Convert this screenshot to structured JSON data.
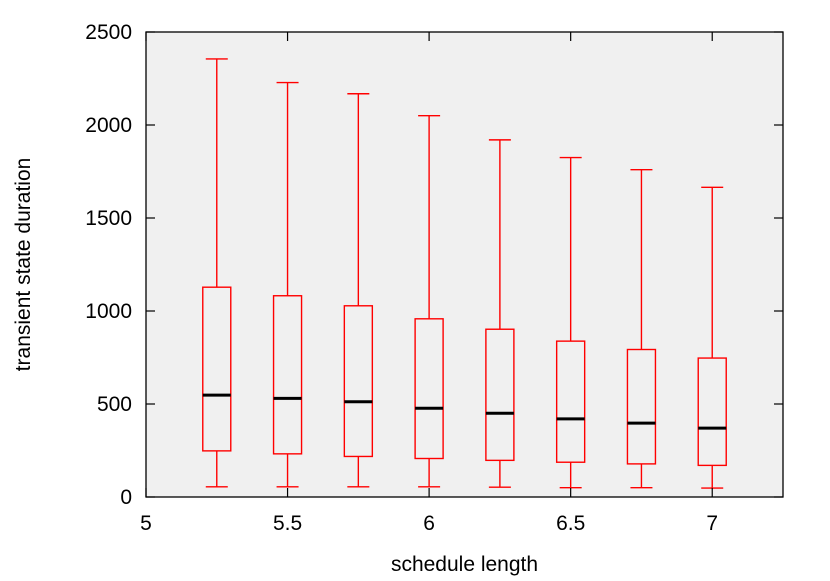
{
  "chart_data": {
    "type": "boxplot",
    "xlabel": "schedule length",
    "ylabel": "transient state duration",
    "xlim": [
      5,
      7.25
    ],
    "ylim": [
      0,
      2500
    ],
    "x_ticks": [
      5,
      5.5,
      6,
      6.5,
      7
    ],
    "x_tick_labels": [
      "5",
      "5.5",
      "6",
      "6.5",
      "7"
    ],
    "y_ticks": [
      0,
      500,
      1000,
      1500,
      2000,
      2500
    ],
    "y_tick_labels": [
      "0",
      "500",
      "1000",
      "1500",
      "2000",
      "2500"
    ],
    "grid": false,
    "background": "#f0f0f0",
    "box_color": "#ff0000",
    "median_color": "#000000",
    "boxes": [
      {
        "x": 5.25,
        "min": 55,
        "q1": 248,
        "median": 548,
        "q3": 1128,
        "max": 2355
      },
      {
        "x": 5.5,
        "min": 55,
        "q1": 232,
        "median": 530,
        "q3": 1082,
        "max": 2228
      },
      {
        "x": 5.75,
        "min": 55,
        "q1": 218,
        "median": 512,
        "q3": 1028,
        "max": 2168
      },
      {
        "x": 6.0,
        "min": 55,
        "q1": 207,
        "median": 477,
        "q3": 958,
        "max": 2050
      },
      {
        "x": 6.25,
        "min": 53,
        "q1": 197,
        "median": 450,
        "q3": 902,
        "max": 1920
      },
      {
        "x": 6.5,
        "min": 50,
        "q1": 187,
        "median": 420,
        "q3": 838,
        "max": 1825
      },
      {
        "x": 6.75,
        "min": 50,
        "q1": 178,
        "median": 397,
        "q3": 793,
        "max": 1760
      },
      {
        "x": 7.0,
        "min": 48,
        "q1": 170,
        "median": 370,
        "q3": 747,
        "max": 1665
      }
    ]
  }
}
